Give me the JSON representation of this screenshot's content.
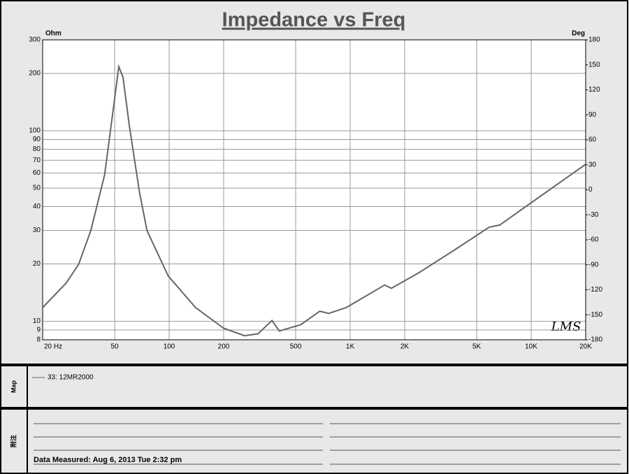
{
  "chart_data": {
    "type": "line",
    "title": "Impedance vs Freq",
    "y_label": "Ohm",
    "y2_label": "Deg",
    "watermark": "LMS",
    "x_scale": "log",
    "y_scale": "log",
    "grid": true,
    "xlim": [
      20,
      20000
    ],
    "ylim": [
      8,
      300
    ],
    "y2lim": [
      -180,
      180
    ],
    "xticks": [
      {
        "value": 20,
        "label": "20  Hz"
      },
      50,
      100,
      200,
      500,
      {
        "value": 1000,
        "label": "1K"
      },
      {
        "value": 2000,
        "label": "2K"
      },
      {
        "value": 5000,
        "label": "5K"
      },
      {
        "value": 10000,
        "label": "10K"
      },
      {
        "value": 20000,
        "label": "20K"
      }
    ],
    "yticks": [
      8,
      9,
      10,
      20,
      30,
      40,
      50,
      60,
      70,
      80,
      90,
      100,
      200,
      300
    ],
    "y2ticks": [
      -180,
      -150,
      -120,
      -90,
      -60,
      -30,
      0,
      30,
      60,
      90,
      120,
      150,
      180
    ],
    "series": [
      {
        "name": "33: 12MR2000",
        "color": "#666666",
        "x": [
          20,
          27,
          31.6,
          36.9,
          44,
          49.5,
          52.7,
          55.6,
          60.3,
          68.6,
          75.5,
          98.7,
          140,
          200,
          261,
          310,
          370,
          406,
          533,
          680,
          760,
          950,
          1550,
          1690,
          2400,
          3750,
          5860,
          6700,
          10000,
          20000
        ],
        "values": [
          11.8,
          15.9,
          19.9,
          29.9,
          58.7,
          137,
          217,
          191,
          106,
          47.5,
          29.9,
          17.3,
          11.8,
          9.2,
          8.4,
          8.6,
          10.1,
          8.9,
          9.6,
          11.3,
          11,
          11.8,
          15.5,
          14.9,
          18,
          23.6,
          31.2,
          32,
          41.9,
          66.7
        ]
      }
    ]
  },
  "map_panel": {
    "label": "Map"
  },
  "notes_panel": {
    "label": "附注",
    "measured": "Data Measured: Aug  6, 2013  Tue  2:32 pm"
  }
}
